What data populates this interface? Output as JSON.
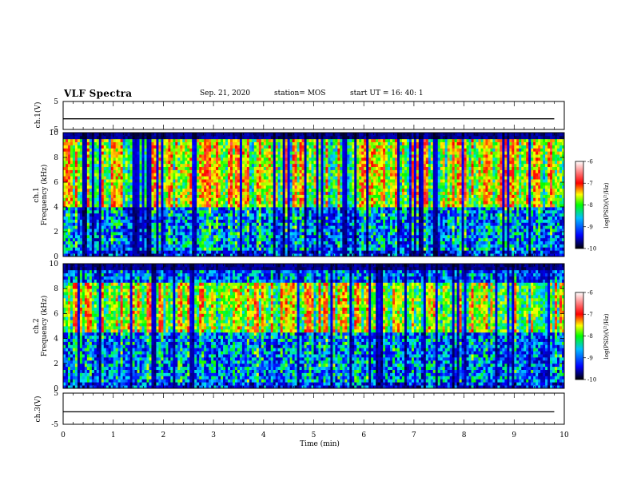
{
  "header": {
    "title": "VLF Spectra",
    "date": "Sep. 21, 2020",
    "station": "station= MOS",
    "start_ut": "start  UT =   16: 40: 1"
  },
  "chart_data": [
    {
      "type": "line",
      "panel": "ch1-waveform",
      "ylabel": "ch.1(V)",
      "ylim": [
        -5,
        5
      ],
      "yticks": [
        -5,
        5
      ],
      "series": [
        {
          "x": [
            0,
            9.8
          ],
          "values": [
            -1.2,
            -1.2
          ]
        }
      ],
      "xlim": [
        0,
        10
      ]
    },
    {
      "type": "heatmap",
      "panel": "ch1-spectrogram",
      "ylabel_line1": "ch.1",
      "ylabel_line2": "Frequency (kHz)",
      "ylim": [
        0,
        10
      ],
      "yticks": [
        0,
        2,
        4,
        6,
        8,
        10
      ],
      "xlim": [
        0,
        10
      ],
      "colorbar": {
        "label": "log(PSD)(V²/Hz)",
        "range": [
          -10,
          -6
        ],
        "ticks": [
          -10,
          -9,
          -8,
          -7,
          -6
        ]
      },
      "dominant_band_khz": [
        4,
        9.5
      ],
      "dominant_log_psd": -7
    },
    {
      "type": "heatmap",
      "panel": "ch2-spectrogram",
      "ylabel_line1": "ch.2",
      "ylabel_line2": "Frequency (kHz)",
      "ylim": [
        0,
        10
      ],
      "yticks": [
        0,
        2,
        4,
        6,
        8,
        10
      ],
      "xlim": [
        0,
        10
      ],
      "colorbar": {
        "label": "log(PSD)(V²/Hz)",
        "range": [
          -10,
          -6
        ],
        "ticks": [
          -10,
          -9,
          -8,
          -7,
          -6
        ]
      },
      "dominant_band_khz": [
        4.5,
        8.5
      ],
      "dominant_log_psd": -7
    },
    {
      "type": "line",
      "panel": "ch3-waveform",
      "ylabel": "ch.3(V)",
      "ylim": [
        -5,
        5
      ],
      "yticks": [
        -5,
        5
      ],
      "series": [
        {
          "x": [
            0,
            9.8
          ],
          "values": [
            -1.0,
            -1.0
          ]
        }
      ],
      "xlim": [
        0,
        10
      ]
    }
  ],
  "xaxis": {
    "label": "Time (min)",
    "ticks": [
      0,
      1,
      2,
      3,
      4,
      5,
      6,
      7,
      8,
      9,
      10
    ]
  },
  "colors": {
    "jet": [
      "#00007f",
      "#0000ff",
      "#00ffff",
      "#00ff00",
      "#ffff00",
      "#ff7f00",
      "#ff0000",
      "#ffffff"
    ]
  }
}
